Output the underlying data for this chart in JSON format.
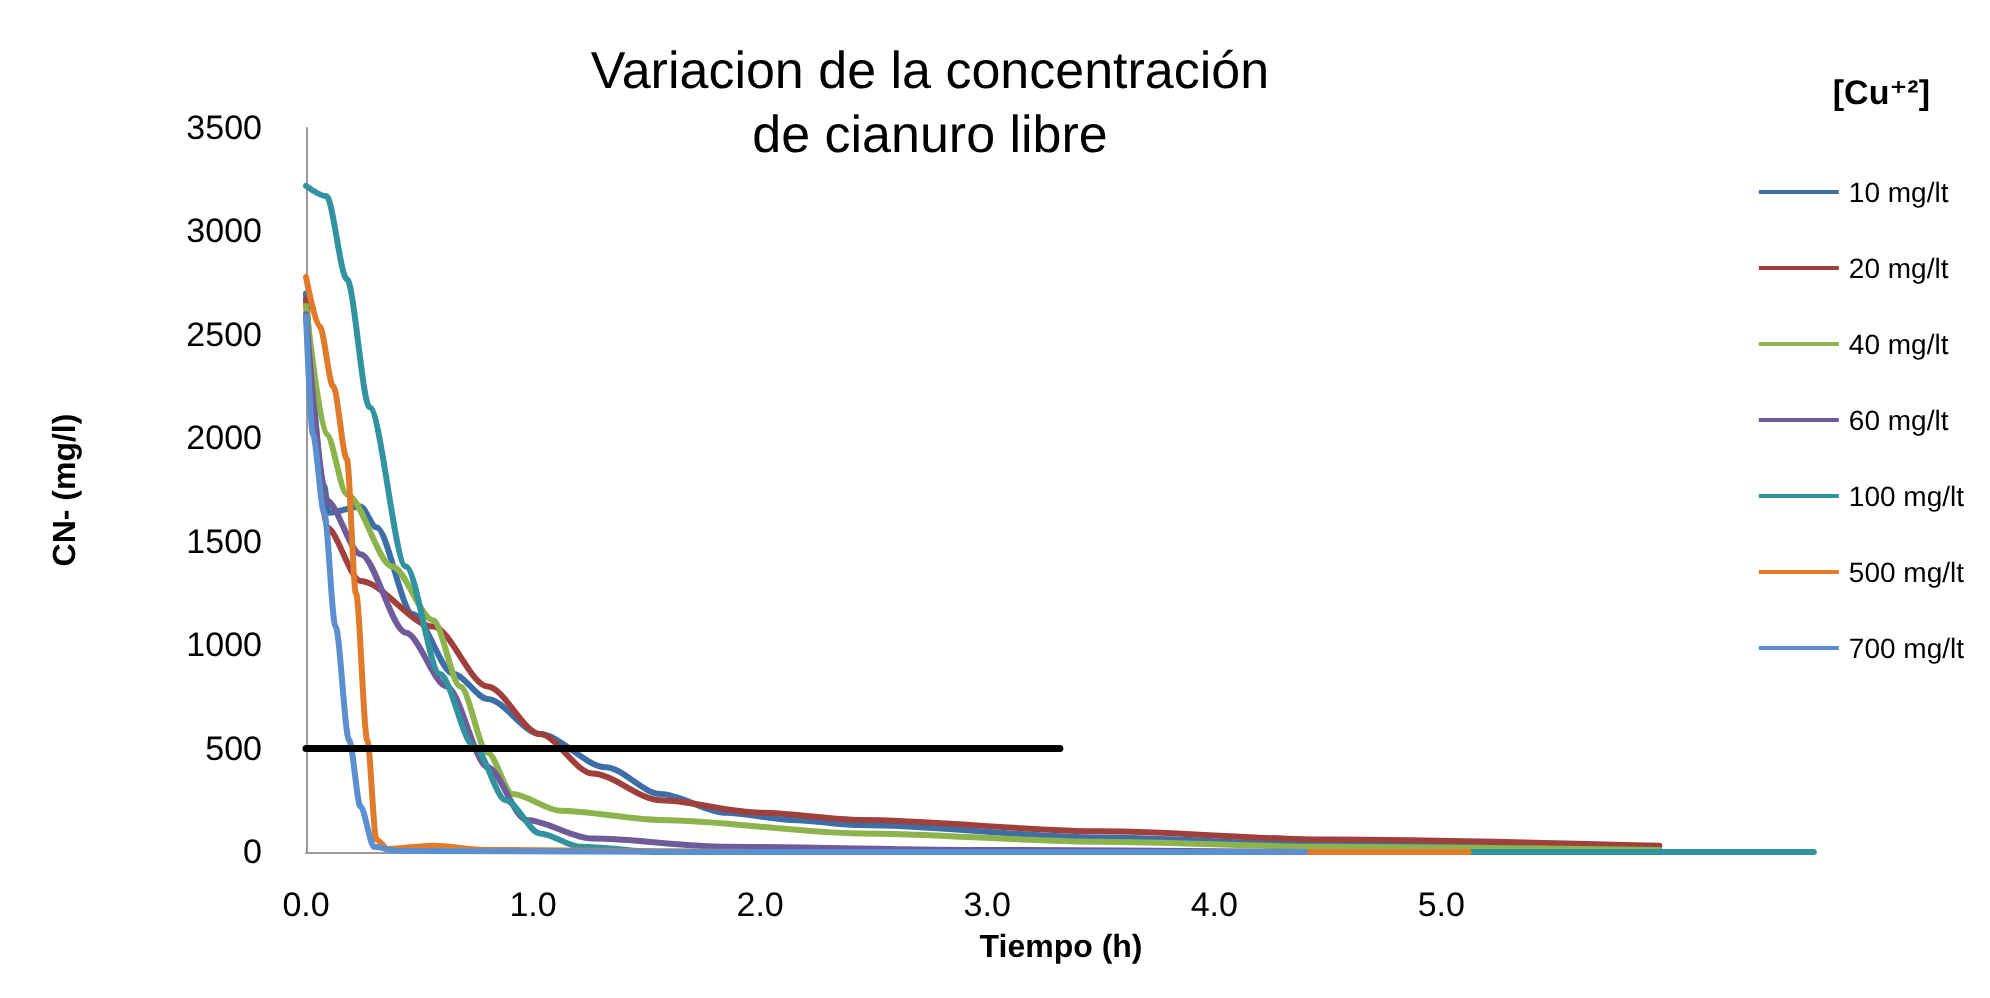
{
  "chart_data": {
    "type": "line",
    "title": "Variacion de la concentración\nde cianuro libre",
    "xlabel": "Tiempo (h)",
    "ylabel": "CN- (mg/l)",
    "legend_title": "[Cu⁺²]",
    "legend": "right",
    "grid": false,
    "marker": "none",
    "line_style": "solid",
    "xlim": [
      0,
      6.65
    ],
    "xticks": [
      {
        "value": 0,
        "label": "0.0"
      },
      {
        "value": 1,
        "label": "1.0"
      },
      {
        "value": 2,
        "label": "2.0"
      },
      {
        "value": 3,
        "label": "3.0"
      },
      {
        "value": 4,
        "label": "4.0"
      },
      {
        "value": 5,
        "label": "5.0"
      }
    ],
    "ylim": [
      0,
      3500
    ],
    "yticks": [
      0,
      500,
      1000,
      1500,
      2000,
      2500,
      3000,
      3500
    ],
    "series": [
      {
        "name": "10 mg/lt",
        "color": "#3e6ea8",
        "x": [
          0,
          0.08,
          0.1,
          0.24,
          0.31,
          0.47,
          0.65,
          0.8,
          1.03,
          1.32,
          1.56,
          1.85,
          2.14,
          2.44,
          3.5,
          4.5,
          5.96
        ],
        "values": [
          2700,
          1770,
          1640,
          1670,
          1570,
          1150,
          860,
          740,
          570,
          410,
          280,
          190,
          155,
          130,
          70,
          35,
          10
        ]
      },
      {
        "name": "20 mg/lt",
        "color": "#a0403d",
        "x": [
          0,
          0.09,
          0.24,
          0.56,
          0.8,
          1.03,
          1.26,
          1.56,
          2.0,
          2.44,
          3.5,
          4.5,
          5.96
        ],
        "values": [
          2670,
          1570,
          1310,
          1090,
          800,
          570,
          380,
          250,
          190,
          155,
          100,
          60,
          30
        ]
      },
      {
        "name": "40 mg/lt",
        "color": "#8db34c",
        "x": [
          0,
          0.09,
          0.18,
          0.38,
          0.56,
          0.68,
          0.8,
          0.91,
          1.12,
          1.56,
          2.44,
          3.5,
          4.5,
          5.96
        ],
        "values": [
          2640,
          2020,
          1730,
          1380,
          1120,
          800,
          480,
          280,
          200,
          155,
          90,
          50,
          25,
          10
        ]
      },
      {
        "name": "60 mg/lt",
        "color": "#6f5a9a",
        "x": [
          0,
          0.09,
          0.24,
          0.44,
          0.62,
          0.8,
          0.97,
          1.26,
          1.85,
          3.0,
          4.4
        ],
        "values": [
          2600,
          1700,
          1440,
          1060,
          800,
          410,
          155,
          65,
          25,
          10,
          0
        ]
      },
      {
        "name": "100 mg/lt",
        "color": "#31939f",
        "x": [
          0,
          0.09,
          0.18,
          0.28,
          0.44,
          0.59,
          0.74,
          0.88,
          1.03,
          1.21,
          1.56,
          3.0,
          5.12,
          6.64
        ],
        "values": [
          3220,
          3170,
          2770,
          2150,
          1380,
          860,
          510,
          250,
          90,
          25,
          0,
          0,
          0,
          0
        ]
      },
      {
        "name": "500 mg/lt",
        "color": "#e07b2b",
        "x": [
          0,
          0.06,
          0.12,
          0.18,
          0.22,
          0.27,
          0.31,
          0.36,
          0.56,
          0.8,
          2.0,
          4.4,
          5.12
        ],
        "values": [
          2780,
          2540,
          2250,
          1900,
          1250,
          540,
          60,
          15,
          30,
          10,
          0,
          0,
          0
        ]
      },
      {
        "name": "700 mg/lt",
        "color": "#5b8fd0",
        "x": [
          0,
          0.03,
          0.08,
          0.13,
          0.19,
          0.24,
          0.3,
          0.4,
          2.0,
          4.4
        ],
        "values": [
          2590,
          2020,
          1640,
          1090,
          540,
          220,
          25,
          5,
          0,
          0
        ]
      },
      {
        "type": "line",
        "color": "#000000",
        "x": [
          0,
          3.32
        ],
        "values": [
          500,
          500
        ]
      }
    ]
  }
}
